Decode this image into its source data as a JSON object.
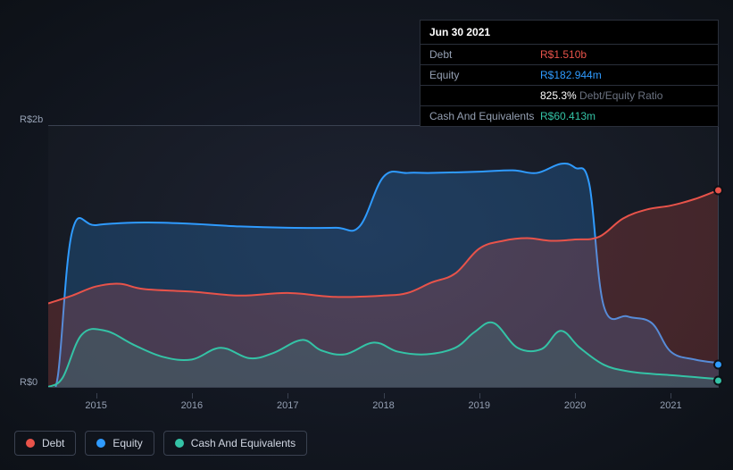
{
  "tooltip": {
    "date": "Jun 30 2021",
    "rows": [
      {
        "label": "Debt",
        "value": "R$1.510b",
        "cls": "debt"
      },
      {
        "label": "Equity",
        "value": "R$182.944m",
        "cls": "equity"
      },
      {
        "label": "",
        "value": "825.3%",
        "suffix": "Debt/Equity Ratio",
        "cls": "ratio-num"
      },
      {
        "label": "Cash And Equivalents",
        "value": "R$60.413m",
        "cls": "cash"
      }
    ]
  },
  "chart": {
    "type": "area",
    "ylim": [
      0,
      2000
    ],
    "y_top_label": "R$2b",
    "y_bottom_label": "R$0",
    "background_color": "#0d1117",
    "grid_color": "#3a4150",
    "label_fontsize": 11,
    "x_labels": [
      "2015",
      "2016",
      "2017",
      "2018",
      "2019",
      "2020",
      "2021"
    ],
    "x_domain": [
      2014.5,
      2021.5
    ],
    "series": [
      {
        "name": "Equity",
        "color": "#2f9bff",
        "fill": "rgba(47,155,255,0.22)",
        "points": [
          [
            2014.5,
            0
          ],
          [
            2014.6,
            80
          ],
          [
            2014.75,
            1190
          ],
          [
            2015.0,
            1240
          ],
          [
            2015.5,
            1260
          ],
          [
            2016.0,
            1250
          ],
          [
            2016.5,
            1230
          ],
          [
            2017.0,
            1220
          ],
          [
            2017.5,
            1220
          ],
          [
            2017.75,
            1230
          ],
          [
            2018.0,
            1610
          ],
          [
            2018.25,
            1640
          ],
          [
            2018.5,
            1640
          ],
          [
            2019.0,
            1650
          ],
          [
            2019.35,
            1660
          ],
          [
            2019.6,
            1640
          ],
          [
            2019.85,
            1710
          ],
          [
            2020.0,
            1680
          ],
          [
            2020.15,
            1550
          ],
          [
            2020.3,
            620
          ],
          [
            2020.55,
            540
          ],
          [
            2020.8,
            490
          ],
          [
            2021.0,
            270
          ],
          [
            2021.25,
            210
          ],
          [
            2021.5,
            183
          ]
        ]
      },
      {
        "name": "Debt",
        "color": "#e8534a",
        "fill": "rgba(232,83,74,0.22)",
        "points": [
          [
            2014.5,
            640
          ],
          [
            2014.75,
            700
          ],
          [
            2015.0,
            770
          ],
          [
            2015.25,
            790
          ],
          [
            2015.5,
            750
          ],
          [
            2016.0,
            730
          ],
          [
            2016.5,
            700
          ],
          [
            2017.0,
            720
          ],
          [
            2017.5,
            690
          ],
          [
            2018.0,
            700
          ],
          [
            2018.25,
            720
          ],
          [
            2018.5,
            800
          ],
          [
            2018.75,
            870
          ],
          [
            2019.0,
            1060
          ],
          [
            2019.25,
            1120
          ],
          [
            2019.5,
            1140
          ],
          [
            2019.75,
            1120
          ],
          [
            2020.0,
            1130
          ],
          [
            2020.25,
            1150
          ],
          [
            2020.5,
            1290
          ],
          [
            2020.75,
            1360
          ],
          [
            2021.0,
            1390
          ],
          [
            2021.25,
            1440
          ],
          [
            2021.5,
            1510
          ]
        ]
      },
      {
        "name": "Cash And Equivalents",
        "color": "#34c3a6",
        "fill": "rgba(52,195,166,0.15)",
        "points": [
          [
            2014.5,
            0
          ],
          [
            2014.65,
            70
          ],
          [
            2014.85,
            400
          ],
          [
            2015.1,
            430
          ],
          [
            2015.4,
            320
          ],
          [
            2015.7,
            230
          ],
          [
            2016.0,
            210
          ],
          [
            2016.3,
            300
          ],
          [
            2016.6,
            220
          ],
          [
            2016.85,
            260
          ],
          [
            2017.15,
            360
          ],
          [
            2017.35,
            280
          ],
          [
            2017.6,
            250
          ],
          [
            2017.9,
            340
          ],
          [
            2018.15,
            270
          ],
          [
            2018.45,
            250
          ],
          [
            2018.75,
            300
          ],
          [
            2018.95,
            420
          ],
          [
            2019.15,
            490
          ],
          [
            2019.4,
            300
          ],
          [
            2019.65,
            290
          ],
          [
            2019.85,
            430
          ],
          [
            2020.05,
            300
          ],
          [
            2020.3,
            170
          ],
          [
            2020.55,
            120
          ],
          [
            2020.8,
            100
          ],
          [
            2021.0,
            90
          ],
          [
            2021.25,
            75
          ],
          [
            2021.5,
            60
          ]
        ]
      }
    ],
    "markers": [
      {
        "color": "#e8534a",
        "y": 1510
      },
      {
        "color": "#2f9bff",
        "y": 183
      },
      {
        "color": "#34c3a6",
        "y": 60
      }
    ]
  },
  "legend": [
    {
      "label": "Debt",
      "color": "#e8534a"
    },
    {
      "label": "Equity",
      "color": "#2f9bff"
    },
    {
      "label": "Cash And Equivalents",
      "color": "#34c3a6"
    }
  ]
}
